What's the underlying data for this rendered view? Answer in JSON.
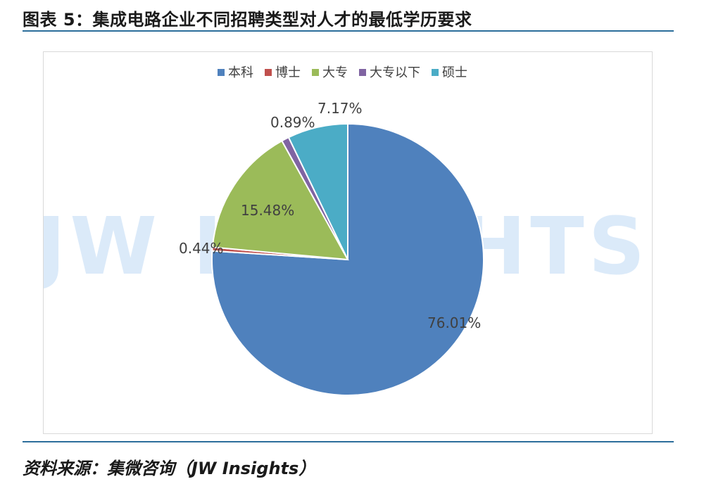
{
  "figure": {
    "title": "图表 5：集成电路企业不同招聘类型对人才的最低学历要求",
    "source": "资料来源：集微咨询（JW Insights）",
    "watermark": "JW INSIGHTS"
  },
  "chart_data": {
    "type": "pie",
    "categories": [
      "本科",
      "博士",
      "大专",
      "大专以下",
      "硕士"
    ],
    "values": [
      76.01,
      0.44,
      15.48,
      0.89,
      7.17
    ],
    "labels": [
      "76.01%",
      "0.44%",
      "15.48%",
      "0.89%",
      "7.17%"
    ],
    "colors": [
      "#4f81bd",
      "#c0504d",
      "#9bbb59",
      "#8064a2",
      "#4bacc6"
    ],
    "start": "12 o'clock",
    "direction": "clockwise",
    "legend": "top"
  }
}
